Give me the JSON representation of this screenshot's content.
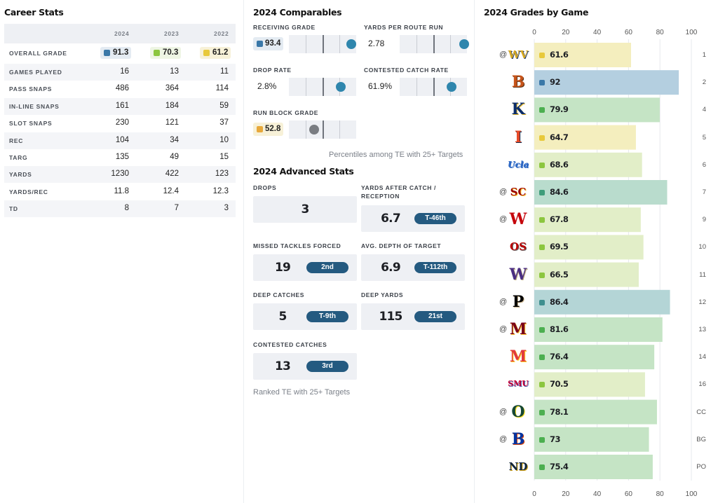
{
  "career": {
    "title": "Career Stats",
    "years": [
      "2024",
      "2023",
      "2022"
    ],
    "grade_row": {
      "label": "OVERALL GRADE",
      "values": [
        "91.3",
        "70.3",
        "61.2"
      ],
      "colors": [
        "#3a78a8",
        "#8cc63f",
        "#e8c93b"
      ],
      "bgs": [
        "#e4ebf2",
        "#eef5e4",
        "#f7f1d8"
      ]
    },
    "rows": [
      {
        "label": "GAMES PLAYED",
        "values": [
          "16",
          "13",
          "11"
        ]
      },
      {
        "label": "PASS SNAPS",
        "values": [
          "486",
          "364",
          "114"
        ]
      },
      {
        "label": "IN-LINE SNAPS",
        "values": [
          "161",
          "184",
          "59"
        ]
      },
      {
        "label": "SLOT SNAPS",
        "values": [
          "230",
          "121",
          "37"
        ]
      },
      {
        "label": "REC",
        "values": [
          "104",
          "34",
          "10"
        ]
      },
      {
        "label": "TARG",
        "values": [
          "135",
          "49",
          "15"
        ]
      },
      {
        "label": "YARDS",
        "values": [
          "1230",
          "422",
          "123"
        ]
      },
      {
        "label": "YARDS/REC",
        "values": [
          "11.8",
          "12.4",
          "12.3"
        ]
      },
      {
        "label": "TD",
        "values": [
          "8",
          "7",
          "3"
        ]
      }
    ]
  },
  "comparables": {
    "title": "2024 Comparables",
    "items": [
      {
        "label": "RECEIVING GRADE",
        "value": "93.4",
        "pill": true,
        "pill_color": "#3a78a8",
        "pill_bg": "#e4ebf2",
        "percentile": 0.93,
        "dot_color": "#2f86ad"
      },
      {
        "label": "YARDS PER ROUTE RUN",
        "value": "2.78",
        "pill": false,
        "percentile": 0.96,
        "dot_color": "#2f86ad"
      },
      {
        "label": "DROP RATE",
        "value": "2.8%",
        "pill": false,
        "percentile": 0.77,
        "dot_color": "#2f86ad"
      },
      {
        "label": "CONTESTED CATCH RATE",
        "value": "61.9%",
        "pill": false,
        "percentile": 0.77,
        "dot_color": "#2f86ad"
      },
      {
        "label": "RUN BLOCK GRADE",
        "value": "52.8",
        "pill": true,
        "pill_color": "#e8a93b",
        "pill_bg": "#f7f1d8",
        "percentile": 0.38,
        "dot_color": "#7a7d82"
      }
    ],
    "note": "Percentiles among TE with 25+ Targets"
  },
  "advanced": {
    "title": "2024 Advanced Stats",
    "items": [
      {
        "label": "DROPS",
        "value": "3",
        "rank": ""
      },
      {
        "label": "YARDS AFTER CATCH / RECEPTION",
        "value": "6.7",
        "rank": "T-46th"
      },
      {
        "label": "MISSED TACKLES FORCED",
        "value": "19",
        "rank": "2nd"
      },
      {
        "label": "AVG. DEPTH OF TARGET",
        "value": "6.9",
        "rank": "T-112th"
      },
      {
        "label": "DEEP CATCHES",
        "value": "5",
        "rank": "T-9th"
      },
      {
        "label": "DEEP YARDS",
        "value": "115",
        "rank": "21st"
      },
      {
        "label": "CONTESTED CATCHES",
        "value": "13",
        "rank": "3rd"
      }
    ],
    "note": "Ranked TE with 25+ Targets"
  },
  "chart_data": {
    "type": "bar",
    "title": "2024 Grades by Game",
    "xlim": [
      0,
      100
    ],
    "ticks": [
      "0",
      "20",
      "40",
      "60",
      "80",
      "100"
    ],
    "games": [
      {
        "week": "1",
        "away": true,
        "opponent_logo": "WV",
        "logo_color": "#d7a81f",
        "logo_color2": "#1e3a6e",
        "grade": 61.6,
        "label": "61.6",
        "bar": "#f4eebe",
        "dot": "#e8c93b"
      },
      {
        "week": "2",
        "away": false,
        "opponent_logo": "B",
        "logo_color": "#c7541a",
        "logo_color2": "#5c3317",
        "grade": 92,
        "label": "92",
        "bar": "#b4cfe0",
        "dot": "#3a78a8"
      },
      {
        "week": "4",
        "away": false,
        "opponent_logo": "K",
        "logo_color": "#0b2d6b",
        "logo_color2": "#e6b626",
        "grade": 79.9,
        "label": "79.9",
        "bar": "#c5e4c5",
        "dot": "#4caf50"
      },
      {
        "week": "5",
        "away": false,
        "opponent_logo": "I",
        "logo_color": "#e84a27",
        "logo_color2": "#13294b",
        "grade": 64.7,
        "label": "64.7",
        "bar": "#f4eebe",
        "dot": "#e8c93b"
      },
      {
        "week": "6",
        "away": false,
        "opponent_logo": "Ucla",
        "logo_color": "#2d68c4",
        "logo_color2": "#2d68c4",
        "grade": 68.6,
        "label": "68.6",
        "bar": "#e2eec8",
        "dot": "#8cc63f"
      },
      {
        "week": "7",
        "away": true,
        "opponent_logo": "SC",
        "logo_color": "#990000",
        "logo_color2": "#ffc72c",
        "grade": 84.6,
        "label": "84.6",
        "bar": "#b9dccd",
        "dot": "#3e9d7a"
      },
      {
        "week": "9",
        "away": true,
        "opponent_logo": "W",
        "logo_color": "#c5050c",
        "logo_color2": "#ffffff",
        "grade": 67.8,
        "label": "67.8",
        "bar": "#e2eec8",
        "dot": "#8cc63f"
      },
      {
        "week": "10",
        "away": false,
        "opponent_logo": "OS",
        "logo_color": "#bb0000",
        "logo_color2": "#666666",
        "grade": 69.5,
        "label": "69.5",
        "bar": "#e2eec8",
        "dot": "#8cc63f"
      },
      {
        "week": "11",
        "away": false,
        "opponent_logo": "W",
        "logo_color": "#4b2e83",
        "logo_color2": "#b7a57a",
        "grade": 66.5,
        "label": "66.5",
        "bar": "#e2eec8",
        "dot": "#8cc63f"
      },
      {
        "week": "12",
        "away": true,
        "opponent_logo": "P",
        "logo_color": "#000000",
        "logo_color2": "#cfb991",
        "grade": 86.4,
        "label": "86.4",
        "bar": "#b4d5d6",
        "dot": "#3e8f8f"
      },
      {
        "week": "13",
        "away": true,
        "opponent_logo": "M",
        "logo_color": "#7a0019",
        "logo_color2": "#ffcc33",
        "grade": 81.6,
        "label": "81.6",
        "bar": "#c5e4c5",
        "dot": "#4caf50"
      },
      {
        "week": "14",
        "away": false,
        "opponent_logo": "M",
        "logo_color": "#e03a3e",
        "logo_color2": "#ffd520",
        "grade": 76.4,
        "label": "76.4",
        "bar": "#c5e4c5",
        "dot": "#4caf50"
      },
      {
        "week": "16",
        "away": false,
        "opponent_logo": "SMU",
        "logo_color": "#cc0035",
        "logo_color2": "#354ca1",
        "grade": 70.5,
        "label": "70.5",
        "bar": "#e2eec8",
        "dot": "#8cc63f"
      },
      {
        "week": "CC",
        "away": true,
        "opponent_logo": "O",
        "logo_color": "#154733",
        "logo_color2": "#fee123",
        "grade": 78.1,
        "label": "78.1",
        "bar": "#c5e4c5",
        "dot": "#4caf50"
      },
      {
        "week": "BG",
        "away": true,
        "opponent_logo": "B",
        "logo_color": "#0033a0",
        "logo_color2": "#d64309",
        "grade": 73,
        "label": "73",
        "bar": "#c5e4c5",
        "dot": "#4caf50"
      },
      {
        "week": "PO",
        "away": false,
        "opponent_logo": "ND",
        "logo_color": "#0c2340",
        "logo_color2": "#c99700",
        "grade": 75.4,
        "label": "75.4",
        "bar": "#c5e4c5",
        "dot": "#4caf50"
      }
    ]
  }
}
